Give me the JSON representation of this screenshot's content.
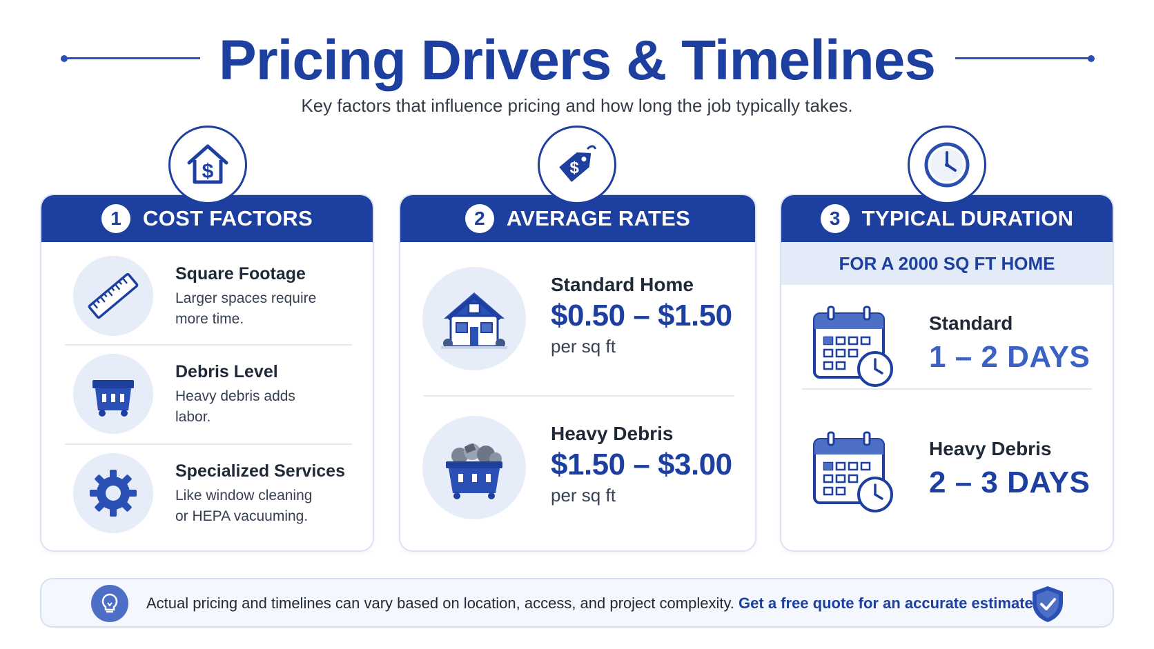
{
  "header": {
    "title": "Pricing Drivers & Timelines",
    "subtitle": "Key factors that influence pricing and how long the job typically takes."
  },
  "colors": {
    "primary": "#1c3fa0",
    "accent_light": "#e4ebf8",
    "duration_light": "#3a62c4"
  },
  "cost_factors": {
    "number": "1",
    "title": "COST FACTORS",
    "icon": "house-dollar-icon",
    "items": [
      {
        "icon": "ruler-icon",
        "title": "Square Footage",
        "desc_line1": "Larger spaces require",
        "desc_line2": "more time."
      },
      {
        "icon": "dumpster-icon",
        "title": "Debris Level",
        "desc_line1": "Heavy debris adds",
        "desc_line2": "labor."
      },
      {
        "icon": "gear-icon",
        "title": "Specialized Services",
        "desc_line1": "Like window cleaning",
        "desc_line2": "or HEPA vacuuming."
      }
    ]
  },
  "average_rates": {
    "number": "2",
    "title": "AVERAGE RATES",
    "icon": "price-tag-icon",
    "items": [
      {
        "icon": "house-icon",
        "label": "Standard Home",
        "value": "$0.50 – $1.50",
        "unit": "per sq ft"
      },
      {
        "icon": "debris-dumpster-icon",
        "label": "Heavy Debris",
        "value": "$1.50 – $3.00",
        "unit": "per sq ft"
      }
    ]
  },
  "typical_duration": {
    "number": "3",
    "title": "TYPICAL DURATION",
    "icon": "clock-icon",
    "subheading": "FOR A 2000 SQ FT HOME",
    "items": [
      {
        "icon": "calendar-clock-icon",
        "label": "Standard",
        "value": "1 – 2 DAYS"
      },
      {
        "icon": "calendar-clock-icon",
        "label": "Heavy Debris",
        "value": "2 – 3 DAYS"
      }
    ]
  },
  "footer": {
    "icon": "lightbulb-icon",
    "text": "Actual pricing and timelines can vary based on location, access, and project complexity. ",
    "link": "Get a free quote for an accurate estimate!",
    "badge_icon": "shield-check-icon"
  }
}
